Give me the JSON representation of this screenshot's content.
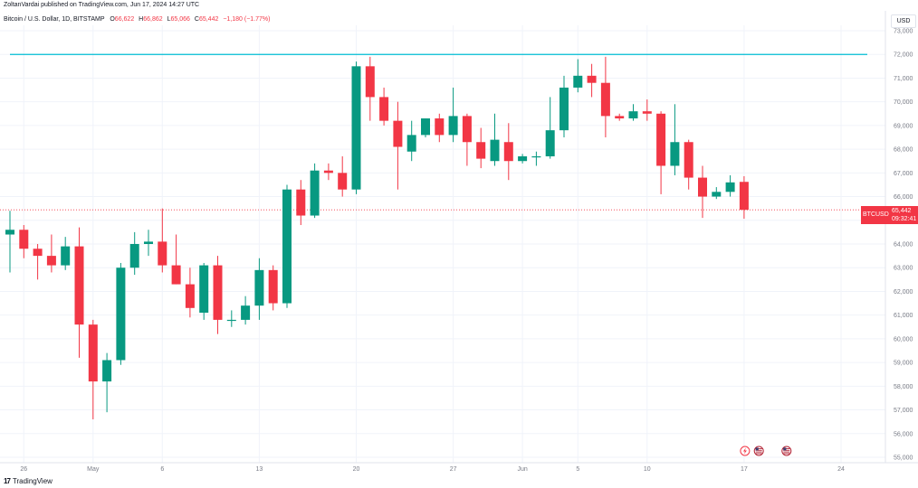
{
  "header": {
    "published": "ZoltanVardai published on TradingView.com, Jun 17, 2024 14:27 UTC",
    "symbol": "Bitcoin / U.S. Dollar, 1D, BITSTAMP",
    "o_label": "O",
    "o_value": "66,622",
    "h_label": "H",
    "h_value": "66,862",
    "l_label": "L",
    "l_value": "65,066",
    "c_label": "C",
    "c_value": "65,442",
    "change": "−1,180 (−1.77%)"
  },
  "currency": "USD",
  "price_tag": {
    "symbol": "BTCUSD",
    "value": "65,442",
    "countdown": "09:32:41"
  },
  "footer": {
    "brand_mark": "17",
    "brand": "TradingView"
  },
  "colors": {
    "up": "#089981",
    "down": "#f23645",
    "hline": "#00bcd4",
    "grid": "#f0f3fa",
    "axis_text": "#787b86"
  },
  "chart_data": {
    "type": "candlestick",
    "title": "Bitcoin / U.S. Dollar, 1D, BITSTAMP",
    "ylim": [
      55000,
      73000
    ],
    "y_ticks": [
      "73,000",
      "72,000",
      "71,000",
      "70,000",
      "69,000",
      "68,000",
      "67,000",
      "66,000",
      "65,000",
      "64,000",
      "63,000",
      "62,000",
      "61,000",
      "60,000",
      "59,000",
      "58,000",
      "57,000",
      "56,000",
      "55,000"
    ],
    "x_ticks": [
      {
        "label": "26",
        "index": 1
      },
      {
        "label": "May",
        "index": 6
      },
      {
        "label": "6",
        "index": 11
      },
      {
        "label": "13",
        "index": 18
      },
      {
        "label": "20",
        "index": 25
      },
      {
        "label": "27",
        "index": 32
      },
      {
        "label": "Jun",
        "index": 37
      },
      {
        "label": "5",
        "index": 41
      },
      {
        "label": "10",
        "index": 46
      },
      {
        "label": "17",
        "index": 53
      },
      {
        "label": "24",
        "index": 60
      }
    ],
    "horizontal_line": 72000,
    "last_price_line": 65442,
    "grid": true,
    "candles": [
      {
        "date": "Apr 25",
        "o": 64400,
        "h": 65400,
        "l": 62800,
        "c": 64600
      },
      {
        "date": "Apr 26",
        "o": 64600,
        "h": 64800,
        "l": 63400,
        "c": 63800
      },
      {
        "date": "Apr 27",
        "o": 63800,
        "h": 64000,
        "l": 62500,
        "c": 63500
      },
      {
        "date": "Apr 28",
        "o": 63500,
        "h": 64400,
        "l": 62800,
        "c": 63100
      },
      {
        "date": "Apr 29",
        "o": 63100,
        "h": 64300,
        "l": 62900,
        "c": 63900
      },
      {
        "date": "Apr 30",
        "o": 63900,
        "h": 64700,
        "l": 59200,
        "c": 60600
      },
      {
        "date": "May 1",
        "o": 60600,
        "h": 60800,
        "l": 56600,
        "c": 58200
      },
      {
        "date": "May 2",
        "o": 58200,
        "h": 59400,
        "l": 56900,
        "c": 59100
      },
      {
        "date": "May 3",
        "o": 59100,
        "h": 63200,
        "l": 58900,
        "c": 63000
      },
      {
        "date": "May 4",
        "o": 63000,
        "h": 64500,
        "l": 62700,
        "c": 64000
      },
      {
        "date": "May 5",
        "o": 64000,
        "h": 64600,
        "l": 63500,
        "c": 64100
      },
      {
        "date": "May 6",
        "o": 64100,
        "h": 65500,
        "l": 62800,
        "c": 63100
      },
      {
        "date": "May 7",
        "o": 63100,
        "h": 64400,
        "l": 62300,
        "c": 62300
      },
      {
        "date": "May 8",
        "o": 62300,
        "h": 63000,
        "l": 60900,
        "c": 61300
      },
      {
        "date": "May 9",
        "o": 61100,
        "h": 63200,
        "l": 60800,
        "c": 63100
      },
      {
        "date": "May 10",
        "o": 63100,
        "h": 63500,
        "l": 60200,
        "c": 60800
      },
      {
        "date": "May 11",
        "o": 60800,
        "h": 61200,
        "l": 60500,
        "c": 60800
      },
      {
        "date": "May 12",
        "o": 60800,
        "h": 61800,
        "l": 60600,
        "c": 61400
      },
      {
        "date": "May 13",
        "o": 61400,
        "h": 63400,
        "l": 60800,
        "c": 62900
      },
      {
        "date": "May 14",
        "o": 62900,
        "h": 63100,
        "l": 61200,
        "c": 61500
      },
      {
        "date": "May 15",
        "o": 61500,
        "h": 66500,
        "l": 61300,
        "c": 66300
      },
      {
        "date": "May 16",
        "o": 66300,
        "h": 66700,
        "l": 64800,
        "c": 65200
      },
      {
        "date": "May 17",
        "o": 65200,
        "h": 67400,
        "l": 65100,
        "c": 67100
      },
      {
        "date": "May 18",
        "o": 67100,
        "h": 67400,
        "l": 66700,
        "c": 67000
      },
      {
        "date": "May 19",
        "o": 67000,
        "h": 67700,
        "l": 66000,
        "c": 66300
      },
      {
        "date": "May 20",
        "o": 66300,
        "h": 71700,
        "l": 66100,
        "c": 71500
      },
      {
        "date": "May 21",
        "o": 71500,
        "h": 71900,
        "l": 69200,
        "c": 70200
      },
      {
        "date": "May 22",
        "o": 70200,
        "h": 70600,
        "l": 69000,
        "c": 69200
      },
      {
        "date": "May 23",
        "o": 69200,
        "h": 70000,
        "l": 66300,
        "c": 68100
      },
      {
        "date": "May 24",
        "o": 67900,
        "h": 69200,
        "l": 67500,
        "c": 68600
      },
      {
        "date": "May 25",
        "o": 68600,
        "h": 69300,
        "l": 68500,
        "c": 69300
      },
      {
        "date": "May 26",
        "o": 69300,
        "h": 69500,
        "l": 68300,
        "c": 68600
      },
      {
        "date": "May 27",
        "o": 68600,
        "h": 70600,
        "l": 68300,
        "c": 69400
      },
      {
        "date": "May 28",
        "o": 69400,
        "h": 69500,
        "l": 67300,
        "c": 68300
      },
      {
        "date": "May 29",
        "o": 68300,
        "h": 68900,
        "l": 67200,
        "c": 67600
      },
      {
        "date": "May 30",
        "o": 67500,
        "h": 69500,
        "l": 67300,
        "c": 68400
      },
      {
        "date": "May 31",
        "o": 68300,
        "h": 69100,
        "l": 66700,
        "c": 67500
      },
      {
        "date": "Jun 1",
        "o": 67500,
        "h": 67800,
        "l": 67400,
        "c": 67700
      },
      {
        "date": "Jun 2",
        "o": 67700,
        "h": 67900,
        "l": 67300,
        "c": 67700
      },
      {
        "date": "Jun 3",
        "o": 67700,
        "h": 70200,
        "l": 67600,
        "c": 68800
      },
      {
        "date": "Jun 4",
        "o": 68800,
        "h": 71100,
        "l": 68500,
        "c": 70600
      },
      {
        "date": "Jun 5",
        "o": 70600,
        "h": 71800,
        "l": 70400,
        "c": 71100
      },
      {
        "date": "Jun 6",
        "o": 71100,
        "h": 71600,
        "l": 70200,
        "c": 70800
      },
      {
        "date": "Jun 7",
        "o": 70800,
        "h": 71900,
        "l": 68500,
        "c": 69400
      },
      {
        "date": "Jun 8",
        "o": 69400,
        "h": 69500,
        "l": 69200,
        "c": 69300
      },
      {
        "date": "Jun 9",
        "o": 69300,
        "h": 69900,
        "l": 69200,
        "c": 69600
      },
      {
        "date": "Jun 10",
        "o": 69600,
        "h": 70100,
        "l": 69200,
        "c": 69500
      },
      {
        "date": "Jun 11",
        "o": 69500,
        "h": 69600,
        "l": 66100,
        "c": 67300
      },
      {
        "date": "Jun 12",
        "o": 67300,
        "h": 69900,
        "l": 66900,
        "c": 68300
      },
      {
        "date": "Jun 13",
        "o": 68300,
        "h": 68400,
        "l": 66300,
        "c": 66800
      },
      {
        "date": "Jun 14",
        "o": 66800,
        "h": 67300,
        "l": 65100,
        "c": 66000
      },
      {
        "date": "Jun 15",
        "o": 66000,
        "h": 66400,
        "l": 65900,
        "c": 66200
      },
      {
        "date": "Jun 16",
        "o": 66200,
        "h": 66900,
        "l": 66000,
        "c": 66600
      },
      {
        "date": "Jun 17",
        "o": 66622,
        "h": 66862,
        "l": 65066,
        "c": 65442
      }
    ],
    "event_markers": [
      {
        "index": 53,
        "kind": "flash-icon"
      },
      {
        "index": 54,
        "kind": "us-flag-icon"
      },
      {
        "index": 56,
        "kind": "us-flag-icon"
      }
    ]
  }
}
